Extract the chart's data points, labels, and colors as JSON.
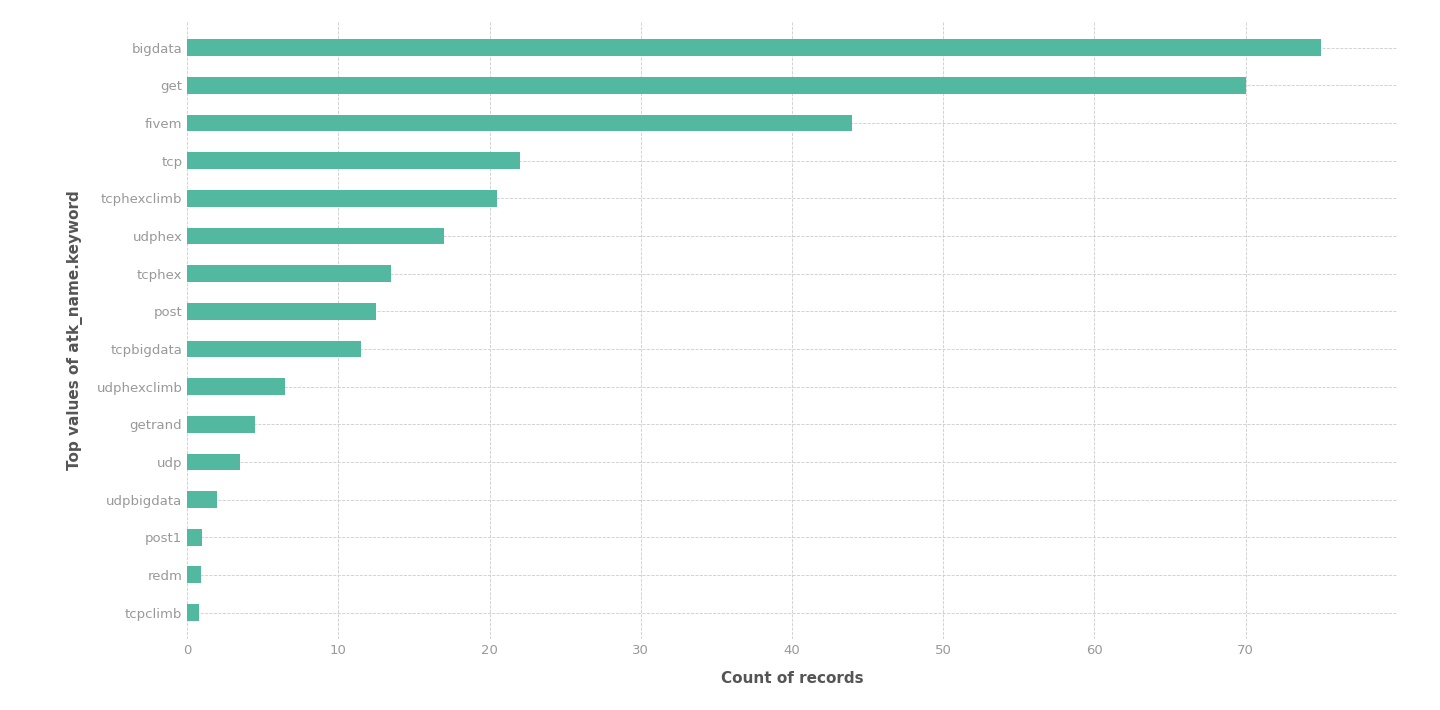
{
  "categories": [
    "tcpclimb",
    "redm",
    "post1",
    "udpbigdata",
    "udp",
    "getrand",
    "udphexclimb",
    "tcpbigdata",
    "post",
    "tcphex",
    "udphex",
    "tcphexclimb",
    "tcp",
    "fivem",
    "get",
    "bigdata"
  ],
  "values": [
    0.8,
    0.9,
    1.0,
    2.0,
    3.5,
    4.5,
    6.5,
    11.5,
    12.5,
    13.5,
    17.0,
    20.5,
    22.0,
    44.0,
    70.0,
    75.0
  ],
  "bar_color": "#52b8a0",
  "xlabel": "Count of records",
  "ylabel": "Top values of atk_name.keyword",
  "background_color": "#ffffff",
  "grid_color": "#cccccc",
  "tick_color": "#999999",
  "label_color": "#555555",
  "bar_height": 0.45,
  "xlim": [
    0,
    80
  ],
  "xticks": [
    0,
    10,
    20,
    30,
    40,
    50,
    60,
    70
  ]
}
